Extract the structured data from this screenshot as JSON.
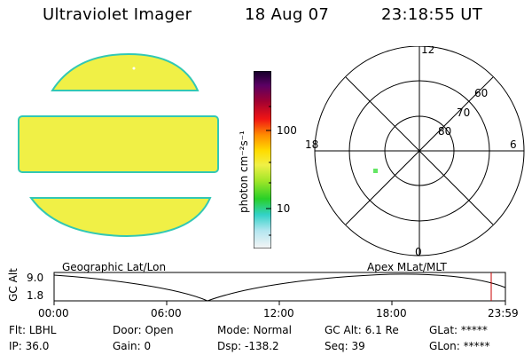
{
  "header": {
    "title": "Ultraviolet Imager",
    "date": "18 Aug 07",
    "time": "23:18:55 UT"
  },
  "colorbar": {
    "unit_label": "photon cm⁻²s⁻¹",
    "ticks": [
      "100",
      "10"
    ],
    "scale": "log"
  },
  "polar": {
    "mlt_labels": {
      "top": "12",
      "left": "18",
      "right": "6",
      "bottom": "0"
    },
    "lat_labels": [
      "60",
      "70",
      "80"
    ]
  },
  "timeline": {
    "left_title": "Geographic Lat/Lon",
    "right_title": "Apex MLat/MLT",
    "axis_label": "GC Alt",
    "y_ticks": [
      "9.0",
      "1.8"
    ],
    "x_ticks": [
      "00:00",
      "06:00",
      "12:00",
      "18:00",
      "23:59"
    ]
  },
  "info": {
    "row1": [
      {
        "key": "Flt:",
        "value": "LBHL"
      },
      {
        "key": "Door:",
        "value": "Open"
      },
      {
        "key": "Mode:",
        "value": "Normal"
      },
      {
        "key": "GC Alt:",
        "value": "6.1 Re"
      },
      {
        "key": "GLat:",
        "value": "*****"
      }
    ],
    "row2": [
      {
        "key": "IP:",
        "value": "36.0"
      },
      {
        "key": "Gain:",
        "value": "0"
      },
      {
        "key": "Dsp:",
        "value": "-138.2"
      },
      {
        "key": "Seq:",
        "value": "39"
      },
      {
        "key": "GLon:",
        "value": "*****"
      }
    ]
  },
  "colors": {
    "image_fill": "#f0f046",
    "image_edge": "#32c8b4",
    "marker": "#c80000",
    "spot": "#64e664"
  }
}
